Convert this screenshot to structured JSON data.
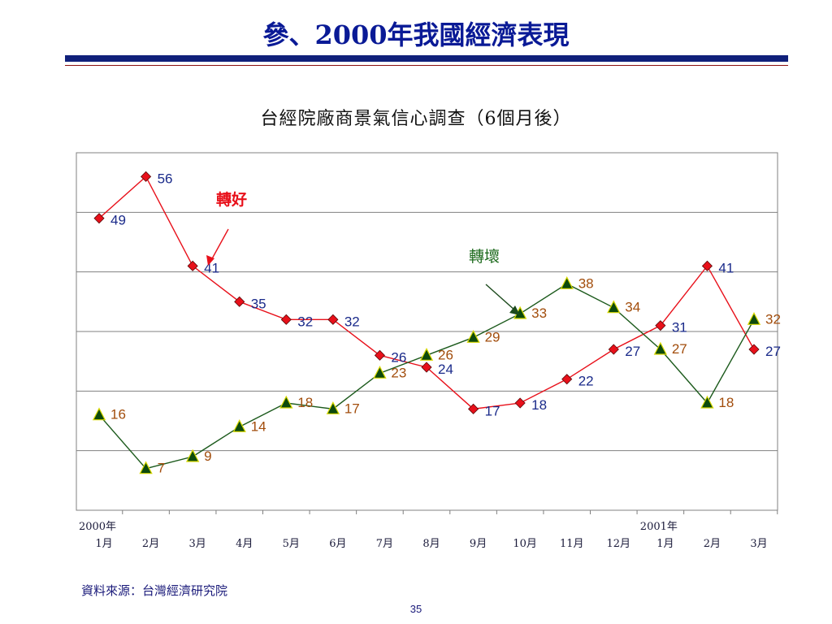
{
  "slide": {
    "title": "參、2000年我國經濟表現",
    "source": "資料來源：台灣經濟研究院",
    "page_number": "35"
  },
  "chart_data": {
    "type": "line",
    "title": "台經院廠商景氣信心調查（6個月後）",
    "categories": [
      "1月",
      "2月",
      "3月",
      "4月",
      "5月",
      "6月",
      "7月",
      "8月",
      "9月",
      "10月",
      "11月",
      "12月",
      "1月",
      "2月",
      "3月"
    ],
    "year_labels": [
      {
        "text": "2000年",
        "category_index": 0
      },
      {
        "text": "2001年",
        "category_index": 12
      }
    ],
    "ylim": [
      0,
      60
    ],
    "grid": true,
    "series": [
      {
        "name": "轉好",
        "color": "#e8101a",
        "marker": "diamond",
        "marker_fill": "#e8101a",
        "label_color": "#1a2a8a",
        "values": [
          49,
          56,
          41,
          35,
          32,
          32,
          26,
          24,
          17,
          18,
          22,
          27,
          31,
          41,
          27
        ]
      },
      {
        "name": "轉壞",
        "color": "#1c5a1c",
        "marker": "triangle",
        "marker_fill": "#0d4a0d",
        "label_color": "#a24d0c",
        "values": [
          16,
          7,
          9,
          14,
          18,
          17,
          23,
          26,
          29,
          33,
          38,
          34,
          27,
          18,
          32
        ]
      }
    ],
    "annotations": [
      {
        "text": "轉好",
        "color": "#e8101a"
      },
      {
        "text": "轉壞",
        "color": "#1c6a1c"
      }
    ]
  }
}
